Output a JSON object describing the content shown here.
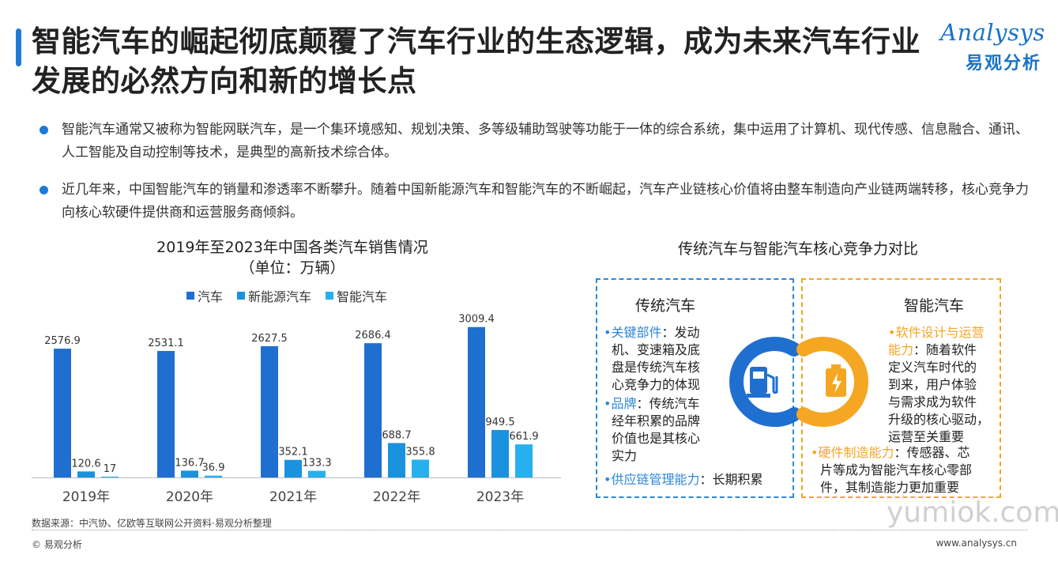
{
  "title": "智能汽车的崛起彻底颠覆了汽车行业的生态逻辑，成为未来汽车行业发展的必然方向和新的增长点",
  "logo": {
    "en": "Analysys",
    "zh": "易观分析"
  },
  "bullets": [
    "智能汽车通常又被称为智能网联汽车，是一个集环境感知、规划决策、多等级辅助驾驶等功能于一体的综合系统，集中运用了计算机、现代传感、信息融合、通讯、人工智能及自动控制等技术，是典型的高新技术综合体。",
    "近几年来，中国智能汽车的销量和渗透率不断攀升。随着中国新能源汽车和智能汽车的不断崛起，汽车产业链核心价值将由整车制造向产业链两端转移，核心竞争力向核心软硬件提供商和运营服务商倾斜。"
  ],
  "chart_data": {
    "type": "bar",
    "title": "2019年至2023年中国各类汽车销售情况",
    "subtitle": "（单位：万辆）",
    "categories": [
      "2019年",
      "2020年",
      "2021年",
      "2022年",
      "2023年"
    ],
    "series": [
      {
        "name": "汽车",
        "color": "#1f6fd1",
        "values": [
          2576.9,
          2531.1,
          2627.5,
          2686.4,
          3009.4
        ],
        "labels": [
          "2576.9",
          "2531.1",
          "2627.5",
          "2686.4",
          "3009.4"
        ]
      },
      {
        "name": "新能源汽车",
        "color": "#1b92de",
        "values": [
          120.6,
          136.7,
          352.1,
          688.7,
          949.5
        ],
        "labels": [
          "120.6",
          "136.7",
          "352.1",
          "688.7",
          "949.5"
        ]
      },
      {
        "name": "智能汽车",
        "color": "#28b0ee",
        "values": [
          17,
          36.9,
          133.3,
          355.8,
          661.9
        ],
        "labels": [
          "17",
          "36.9",
          "133.3",
          "355.8",
          "661.9"
        ]
      }
    ],
    "ylim": [
      0,
      3100
    ],
    "legend": "top",
    "grid": false
  },
  "comparison": {
    "title": "传统汽车与智能汽车核心竞争力对比",
    "left": {
      "heading": "传统汽车",
      "points": [
        {
          "key": "关键部件",
          "lines": [
            "：发动",
            "机、变速箱及底",
            "盘是传统汽车核",
            "心竞争力的体现"
          ]
        },
        {
          "key": "品牌",
          "lines": [
            "：传统汽车",
            "经年积累的品牌",
            "价值也是其核心",
            "实力"
          ]
        },
        {
          "key": "供应链管理能力",
          "lines": [
            "：长期积累"
          ]
        }
      ]
    },
    "right": {
      "heading": "智能汽车",
      "points": [
        {
          "key_lines": [
            "软件设计与运营",
            "能力"
          ],
          "lines": [
            "：随着软件",
            "定义汽车时代的",
            "到来，用户体验",
            "与需求成为软件",
            "升级的核心驱动，",
            "运营至关重要"
          ]
        },
        {
          "key": "硬件制造能力",
          "lines": [
            "：传感器、芯",
            "片等成为智能汽车核心零部",
            "件，其制造能力更加重要"
          ]
        }
      ]
    },
    "icons": {
      "left": "fuel-pump-icon",
      "right": "battery-charge-icon",
      "left_color": "#1f6fd1",
      "right_color": "#f5a623"
    }
  },
  "footer": {
    "source": "数据来源：中汽协、亿欧等互联网公开资料·易观分析整理",
    "copyright": "© 易观分析",
    "website": "www.analysys.cn",
    "watermark": "yumiok.com"
  }
}
